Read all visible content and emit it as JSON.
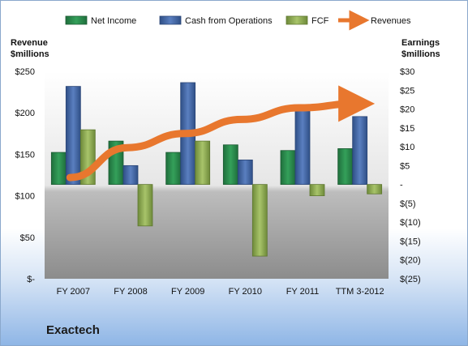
{
  "chart_data": {
    "type": "bar",
    "title": "Exactech",
    "ylabel_left_line1": "Revenue",
    "ylabel_left_line2": "$millions",
    "ylabel_right_line1": "Earnings",
    "ylabel_right_line2": "$millions",
    "categories": [
      "FY 2007",
      "FY 2008",
      "FY 2009",
      "FY 2010",
      "FY 2011",
      "TTM 3-2012"
    ],
    "left_axis": {
      "ticks": [
        "$250",
        "$200",
        "$150",
        "$100",
        "$50",
        "$-"
      ],
      "range": [
        0,
        250
      ]
    },
    "right_axis": {
      "ticks": [
        "$30",
        "$25",
        "$20",
        "$15",
        "$10",
        "$5",
        "-",
        "$(5)",
        "$(10)",
        "$(15)",
        "$(20)",
        "$(25)"
      ],
      "range": [
        -25,
        30
      ]
    },
    "series": [
      {
        "name": "Net Income",
        "axis": "right",
        "color": "#2e8b50",
        "values": [
          8.5,
          11.5,
          8.5,
          10.5,
          9,
          9.5
        ]
      },
      {
        "name": "Cash from Operations",
        "axis": "right",
        "color": "#4a6fb0",
        "values": [
          26,
          5,
          27,
          6.5,
          21,
          18
        ]
      },
      {
        "name": "FCF",
        "axis": "right",
        "color": "#9bbb59",
        "values": [
          14.5,
          -11,
          11.5,
          -19,
          -3,
          -2.5
        ]
      },
      {
        "name": "Revenues",
        "axis": "left",
        "color": "#e8772e",
        "type": "line",
        "values": [
          122,
          158,
          175,
          192,
          206,
          211
        ]
      }
    ]
  }
}
